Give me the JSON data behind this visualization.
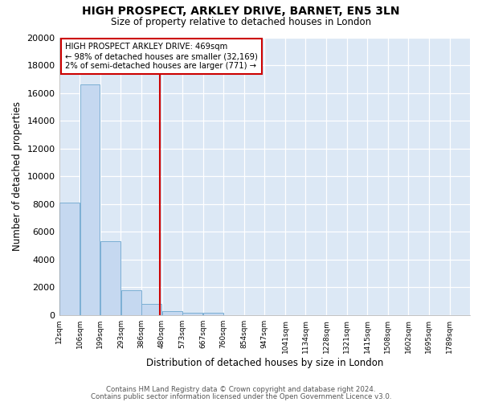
{
  "title": "HIGH PROSPECT, ARKLEY DRIVE, BARNET, EN5 3LN",
  "subtitle": "Size of property relative to detached houses in London",
  "xlabel": "Distribution of detached houses by size in London",
  "ylabel": "Number of detached properties",
  "bar_edges": [
    12,
    106,
    199,
    293,
    386,
    480,
    573,
    667,
    760,
    854,
    947,
    1041,
    1134,
    1228,
    1321,
    1415,
    1508,
    1602,
    1695,
    1789,
    1882
  ],
  "bar_values": [
    8100,
    16600,
    5300,
    1800,
    800,
    300,
    200,
    150,
    0,
    0,
    0,
    0,
    0,
    0,
    0,
    0,
    0,
    0,
    0,
    0
  ],
  "bar_color": "#c5d8f0",
  "bar_edge_color": "#7bafd4",
  "property_size": 469,
  "property_line_color": "#cc0000",
  "annotation_box_color": "#cc0000",
  "annotation_title": "HIGH PROSPECT ARKLEY DRIVE: 469sqm",
  "annotation_line1": "← 98% of detached houses are smaller (32,169)",
  "annotation_line2": "2% of semi-detached houses are larger (771) →",
  "ylim": [
    0,
    20000
  ],
  "yticks": [
    0,
    2000,
    4000,
    6000,
    8000,
    10000,
    12000,
    14000,
    16000,
    18000,
    20000
  ],
  "footer1": "Contains HM Land Registry data © Crown copyright and database right 2024.",
  "footer2": "Contains public sector information licensed under the Open Government Licence v3.0.",
  "bg_color": "#ffffff",
  "plot_bg_color": "#dce8f5"
}
